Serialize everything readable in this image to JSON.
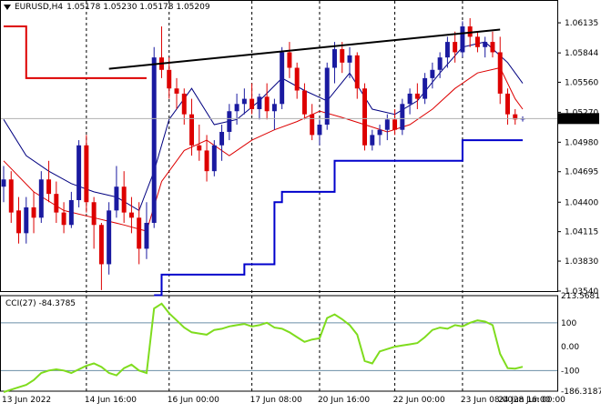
{
  "header": {
    "symbol": "EURUSD,H4",
    "ohlc": "1.05178 1.05230 1.05178 1.05209"
  },
  "indicator": {
    "label": "CCI(27) -84.3785"
  },
  "price_axis": {
    "ticks": [
      "1.06135",
      "1.05844",
      "1.05560",
      "1.05270",
      "1.04980",
      "1.04695",
      "1.04400",
      "1.04115",
      "1.03830",
      "1.03540"
    ],
    "current": "1.05209"
  },
  "cci_axis": {
    "ticks": [
      "213.5681",
      "100",
      "0.00",
      "-100",
      "-186.3187"
    ]
  },
  "time_axis": {
    "labels": [
      "13 Jun 2022",
      "14 Jun 16:00",
      "16 Jun 00:00",
      "17 Jun 08:00",
      "20 Jun 16:00",
      "22 Jun 00:00",
      "23 Jun 08:00",
      "24 Jun 16:00",
      "28 Jun 00:00"
    ]
  },
  "colors": {
    "bull": "#1a1aa0",
    "bear": "#dd0000",
    "cci": "#7fdc1e",
    "trend": "#000000",
    "band": "#0000cc"
  },
  "chart_data": {
    "type": "candlestick",
    "title": "EURUSD,H4",
    "price_range": [
      1.0354,
      1.0625
    ],
    "candles": [
      [
        1.0455,
        1.0475,
        1.044,
        1.0462
      ],
      [
        1.0462,
        1.047,
        1.042,
        1.043
      ],
      [
        1.0432,
        1.0445,
        1.04,
        1.041
      ],
      [
        1.041,
        1.0445,
        1.04,
        1.0435
      ],
      [
        1.0435,
        1.045,
        1.041,
        1.0425
      ],
      [
        1.0425,
        1.047,
        1.042,
        1.0462
      ],
      [
        1.0462,
        1.048,
        1.044,
        1.0448
      ],
      [
        1.0448,
        1.046,
        1.042,
        1.043
      ],
      [
        1.043,
        1.044,
        1.041,
        1.0418
      ],
      [
        1.0418,
        1.045,
        1.0415,
        1.0442
      ],
      [
        1.0442,
        1.05,
        1.0435,
        1.0495
      ],
      [
        1.0495,
        1.0505,
        1.043,
        1.044
      ],
      [
        1.044,
        1.0445,
        1.0395,
        1.0418
      ],
      [
        1.0418,
        1.042,
        1.0355,
        1.038
      ],
      [
        1.038,
        1.044,
        1.037,
        1.0432
      ],
      [
        1.0432,
        1.0475,
        1.0425,
        1.0455
      ],
      [
        1.0455,
        1.047,
        1.042,
        1.043
      ],
      [
        1.043,
        1.0445,
        1.041,
        1.0425
      ],
      [
        1.0425,
        1.044,
        1.038,
        1.0395
      ],
      [
        1.0395,
        1.044,
        1.0385,
        1.042
      ],
      [
        1.042,
        1.059,
        1.0415,
        1.058
      ],
      [
        1.058,
        1.061,
        1.056,
        1.0568
      ],
      [
        1.0568,
        1.058,
        1.054,
        1.055
      ],
      [
        1.055,
        1.056,
        1.053,
        1.0545
      ],
      [
        1.0545,
        1.055,
        1.0515,
        1.0525
      ],
      [
        1.0525,
        1.054,
        1.0485,
        1.0495
      ],
      [
        1.0495,
        1.0515,
        1.048,
        1.049
      ],
      [
        1.049,
        1.0505,
        1.046,
        1.047
      ],
      [
        1.047,
        1.05,
        1.0465,
        1.0495
      ],
      [
        1.0495,
        1.0515,
        1.048,
        1.0508
      ],
      [
        1.0508,
        1.0535,
        1.05,
        1.0528
      ],
      [
        1.0528,
        1.0545,
        1.0515,
        1.0535
      ],
      [
        1.0535,
        1.055,
        1.0525,
        1.054
      ],
      [
        1.054,
        1.0555,
        1.0525,
        1.053
      ],
      [
        1.053,
        1.0545,
        1.052,
        1.0542
      ],
      [
        1.0542,
        1.0555,
        1.052,
        1.0528
      ],
      [
        1.0528,
        1.054,
        1.051,
        1.0535
      ],
      [
        1.0535,
        1.059,
        1.053,
        1.0585
      ],
      [
        1.0585,
        1.0595,
        1.056,
        1.057
      ],
      [
        1.057,
        1.0575,
        1.054,
        1.0548
      ],
      [
        1.0548,
        1.0555,
        1.052,
        1.0525
      ],
      [
        1.0525,
        1.0535,
        1.05,
        1.0505
      ],
      [
        1.0505,
        1.052,
        1.0495,
        1.0515
      ],
      [
        1.0515,
        1.0575,
        1.051,
        1.057
      ],
      [
        1.057,
        1.0595,
        1.0555,
        1.0588
      ],
      [
        1.0588,
        1.0595,
        1.0565,
        1.0575
      ],
      [
        1.0575,
        1.059,
        1.056,
        1.0582
      ],
      [
        1.0582,
        1.0585,
        1.054,
        1.055
      ],
      [
        1.055,
        1.0555,
        1.049,
        1.0495
      ],
      [
        1.0495,
        1.051,
        1.049,
        1.0505
      ],
      [
        1.0505,
        1.0515,
        1.0495,
        1.051
      ],
      [
        1.051,
        1.0525,
        1.05,
        1.052
      ],
      [
        1.052,
        1.053,
        1.0505,
        1.051
      ],
      [
        1.051,
        1.054,
        1.0505,
        1.0535
      ],
      [
        1.0535,
        1.055,
        1.0525,
        1.0545
      ],
      [
        1.0545,
        1.0555,
        1.053,
        1.054
      ],
      [
        1.054,
        1.0565,
        1.0535,
        1.056
      ],
      [
        1.056,
        1.0575,
        1.055,
        1.0568
      ],
      [
        1.0568,
        1.0585,
        1.056,
        1.058
      ],
      [
        1.058,
        1.06,
        1.057,
        1.0595
      ],
      [
        1.0595,
        1.0605,
        1.0575,
        1.0585
      ],
      [
        1.0585,
        1.0615,
        1.058,
        1.061
      ],
      [
        1.061,
        1.0618,
        1.059,
        1.06
      ],
      [
        1.06,
        1.0605,
        1.0585,
        1.059
      ],
      [
        1.059,
        1.06,
        1.058,
        1.0595
      ],
      [
        1.0595,
        1.0605,
        1.058,
        1.0585
      ],
      [
        1.0585,
        1.06,
        1.0535,
        1.0545
      ],
      [
        1.0545,
        1.055,
        1.0515,
        1.0525
      ],
      [
        1.0525,
        1.053,
        1.0515,
        1.052
      ],
      [
        1.052,
        1.0523,
        1.0518,
        1.0521
      ]
    ],
    "trendline": [
      [
        14,
        1.0569
      ],
      [
        66,
        1.0607
      ]
    ],
    "fast_ma": [
      [
        0,
        1.052
      ],
      [
        3,
        1.0485
      ],
      [
        6,
        1.047
      ],
      [
        9,
        1.0458
      ],
      [
        12,
        1.045
      ],
      [
        15,
        1.0445
      ],
      [
        18,
        1.0432
      ],
      [
        20,
        1.047
      ],
      [
        22,
        1.052
      ],
      [
        25,
        1.055
      ],
      [
        28,
        1.0515
      ],
      [
        31,
        1.052
      ],
      [
        34,
        1.0538
      ],
      [
        37,
        1.056
      ],
      [
        40,
        1.0548
      ],
      [
        43,
        1.0538
      ],
      [
        46,
        1.0565
      ],
      [
        49,
        1.053
      ],
      [
        52,
        1.0525
      ],
      [
        55,
        1.0538
      ],
      [
        58,
        1.0565
      ],
      [
        61,
        1.059
      ],
      [
        64,
        1.0595
      ],
      [
        67,
        1.0575
      ],
      [
        69,
        1.0555
      ]
    ],
    "slow_ma": [
      [
        0,
        1.048
      ],
      [
        4,
        1.045
      ],
      [
        8,
        1.0432
      ],
      [
        12,
        1.0425
      ],
      [
        16,
        1.0418
      ],
      [
        19,
        1.0412
      ],
      [
        21,
        1.046
      ],
      [
        24,
        1.049
      ],
      [
        27,
        1.05
      ],
      [
        30,
        1.0485
      ],
      [
        33,
        1.05
      ],
      [
        36,
        1.051
      ],
      [
        39,
        1.0518
      ],
      [
        42,
        1.0528
      ],
      [
        45,
        1.0522
      ],
      [
        48,
        1.0515
      ],
      [
        51,
        1.0508
      ],
      [
        54,
        1.0515
      ],
      [
        57,
        1.053
      ],
      [
        60,
        1.055
      ],
      [
        63,
        1.0565
      ],
      [
        66,
        1.057
      ],
      [
        68,
        1.054
      ],
      [
        69,
        1.053
      ]
    ],
    "upper_channel": [
      [
        0,
        1.061
      ],
      [
        3,
        1.056
      ],
      [
        19,
        1.056
      ]
    ],
    "lower_channel": [
      [
        20,
        1.035
      ],
      [
        21,
        1.037
      ],
      [
        31,
        1.037
      ],
      [
        32,
        1.038
      ],
      [
        36,
        1.044
      ],
      [
        37,
        1.045
      ],
      [
        43,
        1.045
      ],
      [
        44,
        1.048
      ],
      [
        60,
        1.048
      ],
      [
        61,
        1.05
      ],
      [
        69,
        1.05
      ]
    ],
    "cci": {
      "name": "CCI(27)",
      "range": [
        -186.3187,
        213.5681
      ],
      "levels": [
        100,
        -100
      ],
      "values": [
        -190,
        -180,
        -170,
        -160,
        -140,
        -110,
        -100,
        -95,
        -100,
        -110,
        -95,
        -80,
        -70,
        -85,
        -110,
        -120,
        -90,
        -75,
        -100,
        -110,
        160,
        180,
        140,
        110,
        80,
        60,
        55,
        50,
        70,
        75,
        85,
        90,
        95,
        85,
        90,
        100,
        80,
        75,
        60,
        40,
        20,
        30,
        35,
        120,
        135,
        115,
        90,
        50,
        -60,
        -70,
        -20,
        -10,
        0,
        5,
        10,
        15,
        40,
        70,
        80,
        75,
        90,
        85,
        100,
        110,
        105,
        90,
        -30,
        -90,
        -92,
        -84.3785
      ]
    },
    "time_labels": [
      "13 Jun 2022",
      "14 Jun 16:00",
      "16 Jun 00:00",
      "17 Jun 08:00",
      "20 Jun 16:00",
      "22 Jun 00:00",
      "23 Jun 08:00",
      "24 Jun 16:00",
      "28 Jun 00:00"
    ]
  }
}
